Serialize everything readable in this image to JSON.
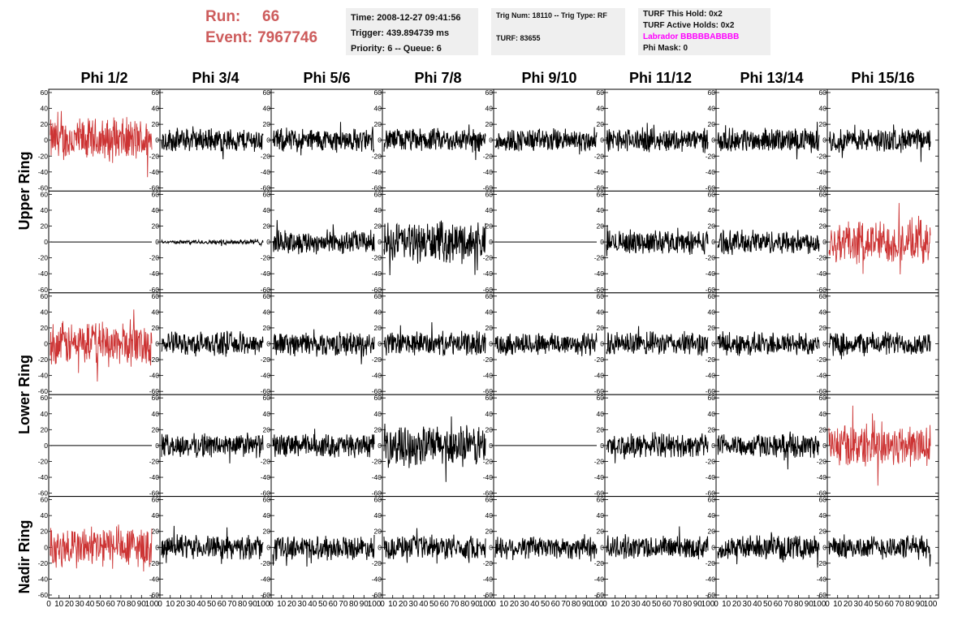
{
  "header": {
    "run_label": "Run:",
    "run_value": "66",
    "event_label": "Event:",
    "event_value": "7967746",
    "time": "Time: 2008-12-27 09:41:56",
    "trigger": "Trigger: 439.894739 ms",
    "priority": "Priority: 6 -- Queue: 6",
    "trig_num": "Trig Num: 18110 -- Trig Type: RF",
    "turf": "TURF: 83655",
    "turf_this_hold": "TURF This Hold: 0x2",
    "turf_active_holds": "TURF Active Holds: 0x2",
    "labrador": "Labrador BBBBBABBBB",
    "phi_mask": "Phi Mask: 0"
  },
  "sectors": [
    "Phi 1/2",
    "Phi 3/4",
    "Phi 5/6",
    "Phi 7/8",
    "Phi 9/10",
    "Phi 11/12",
    "Phi 13/14",
    "Phi 15/16"
  ],
  "rings": [
    "Upper Ring",
    "Lower Ring",
    "Nadir Ring"
  ],
  "colors": {
    "header_red": "#cd5c5c",
    "trace_black": "#000000",
    "trace_red": "#cc3333",
    "labrador_magenta": "#ff00ff",
    "info_bg": "#efefef"
  },
  "axes": {
    "y_ticks": [
      "-60",
      "-40",
      "-20",
      "0",
      "20",
      "40",
      "60"
    ],
    "x_ticks": [
      "0",
      "10",
      "20",
      "30",
      "40",
      "50",
      "60",
      "70",
      "80",
      "90",
      "100"
    ]
  },
  "panels_note_rows": [
    "upper-1",
    "upper-2",
    "lower-1",
    "lower-2",
    "nadir"
  ],
  "trace_style": [
    [
      "red",
      "noise",
      "noise",
      "noise",
      "noise",
      "noise",
      "noise",
      "noise"
    ],
    [
      "flat",
      "quiet",
      "noise",
      "strong",
      "flat",
      "noise",
      "noise",
      "red"
    ],
    [
      "red",
      "noise",
      "noise",
      "noise",
      "noise",
      "noise",
      "noise",
      "noise"
    ],
    [
      "flat",
      "noise",
      "noise",
      "strong",
      "flat",
      "noise",
      "noise",
      "red"
    ],
    [
      "red",
      "noise",
      "noise",
      "noise",
      "noise",
      "noise",
      "noise",
      "noise"
    ]
  ]
}
